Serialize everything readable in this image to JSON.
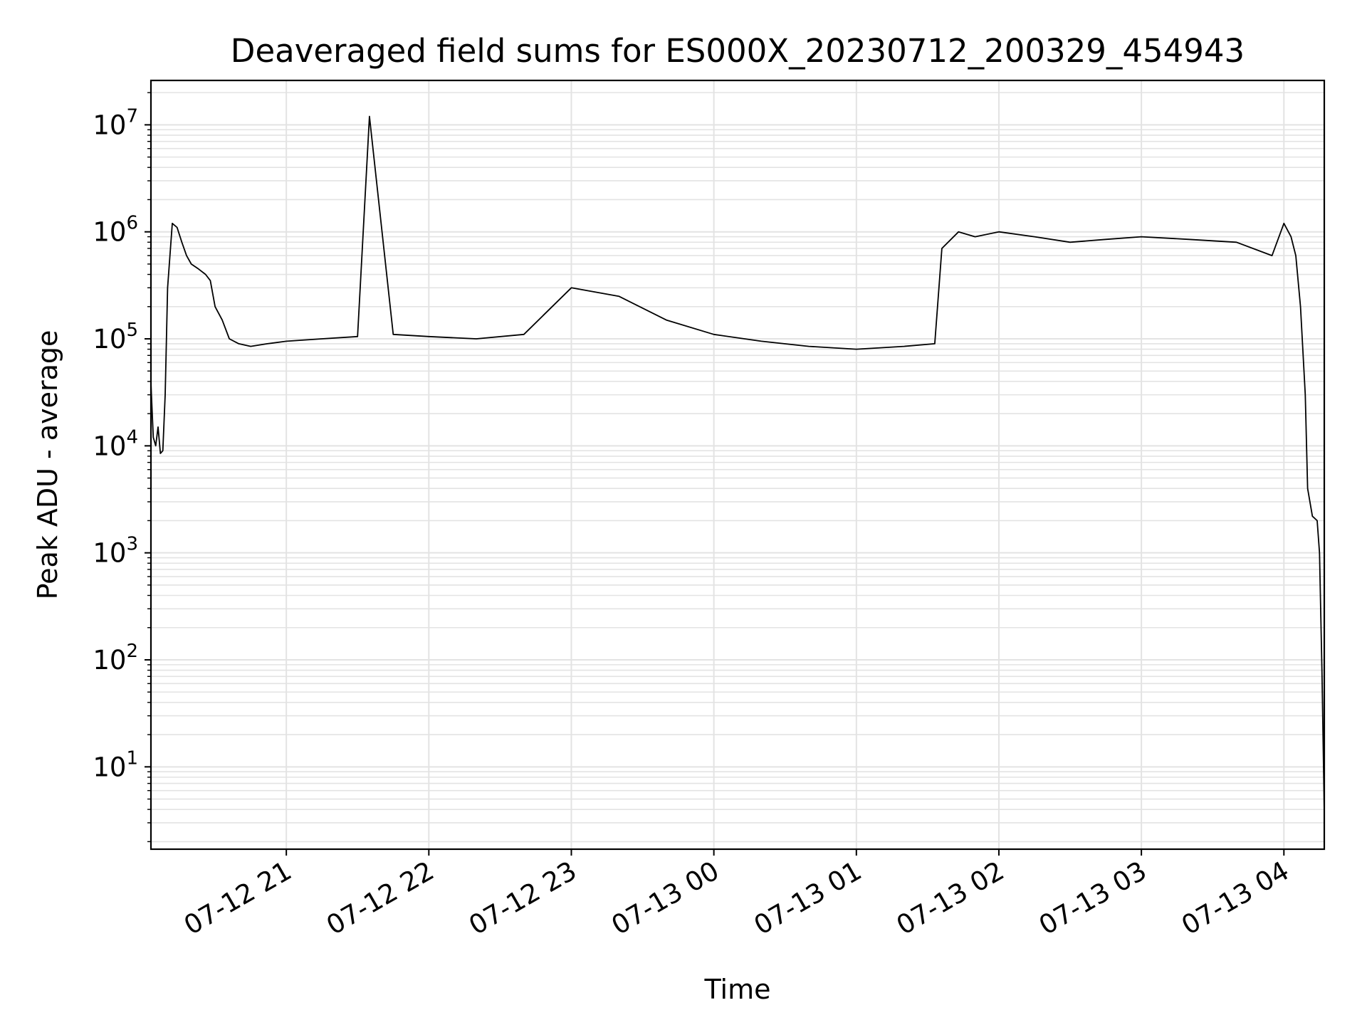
{
  "chart_data": {
    "type": "line",
    "title": "Deaveraged field sums for ES000X_20230712_200329_454943",
    "xlabel": "Time",
    "ylabel": "Peak ADU - average",
    "yscale": "log",
    "grid": true,
    "line_color": "#000000",
    "xlim": [
      "2023-07-12 20:03",
      "2023-07-13 04:17"
    ],
    "ylim": [
      1.7,
      26000000
    ],
    "x_ticks": [
      "07-12 21",
      "07-12 22",
      "07-12 23",
      "07-13 00",
      "07-13 01",
      "07-13 02",
      "07-13 03",
      "07-13 04"
    ],
    "x_tick_values": [
      "2023-07-12 21:00",
      "2023-07-12 22:00",
      "2023-07-12 23:00",
      "2023-07-13 00:00",
      "2023-07-13 01:00",
      "2023-07-13 02:00",
      "2023-07-13 03:00",
      "2023-07-13 04:00"
    ],
    "y_ticks": [
      {
        "value": 10,
        "base": "10",
        "exp": "1"
      },
      {
        "value": 100,
        "base": "10",
        "exp": "2"
      },
      {
        "value": 1000,
        "base": "10",
        "exp": "3"
      },
      {
        "value": 10000,
        "base": "10",
        "exp": "4"
      },
      {
        "value": 100000,
        "base": "10",
        "exp": "5"
      },
      {
        "value": 1000000,
        "base": "10",
        "exp": "6"
      },
      {
        "value": 10000000,
        "base": "10",
        "exp": "7"
      }
    ],
    "series": [
      {
        "x": [
          "2023-07-12 20:03",
          "2023-07-12 20:04",
          "2023-07-12 20:05",
          "2023-07-12 20:06",
          "2023-07-12 20:07",
          "2023-07-12 20:08",
          "2023-07-12 20:09",
          "2023-07-12 20:10",
          "2023-07-12 20:12",
          "2023-07-12 20:14",
          "2023-07-12 20:16",
          "2023-07-12 20:18",
          "2023-07-12 20:20",
          "2023-07-12 20:23",
          "2023-07-12 20:26",
          "2023-07-12 20:28",
          "2023-07-12 20:30",
          "2023-07-12 20:33",
          "2023-07-12 20:36",
          "2023-07-12 20:40",
          "2023-07-12 20:45",
          "2023-07-12 20:52",
          "2023-07-12 21:00",
          "2023-07-12 21:15",
          "2023-07-12 21:30",
          "2023-07-12 21:35",
          "2023-07-12 21:45",
          "2023-07-12 22:00",
          "2023-07-12 22:20",
          "2023-07-12 22:40",
          "2023-07-12 23:00",
          "2023-07-12 23:20",
          "2023-07-12 23:40",
          "2023-07-13 00:00",
          "2023-07-13 00:20",
          "2023-07-13 00:40",
          "2023-07-13 01:00",
          "2023-07-13 01:20",
          "2023-07-13 01:33",
          "2023-07-13 01:36",
          "2023-07-13 01:43",
          "2023-07-13 01:50",
          "2023-07-13 02:00",
          "2023-07-13 02:15",
          "2023-07-13 02:30",
          "2023-07-13 02:45",
          "2023-07-13 03:00",
          "2023-07-13 03:20",
          "2023-07-13 03:40",
          "2023-07-13 03:55",
          "2023-07-13 04:00",
          "2023-07-13 04:03",
          "2023-07-13 04:05",
          "2023-07-13 04:07",
          "2023-07-13 04:09",
          "2023-07-13 04:10",
          "2023-07-13 04:12",
          "2023-07-13 04:14",
          "2023-07-13 04:15",
          "2023-07-13 04:16",
          "2023-07-13 04:17"
        ],
        "y": [
          38000,
          12000,
          10000,
          15000,
          8500,
          9000,
          30000,
          300000,
          1200000,
          1100000,
          800000,
          600000,
          500000,
          450000,
          400000,
          350000,
          200000,
          150000,
          100000,
          90000,
          85000,
          90000,
          95000,
          100000,
          105000,
          12000000,
          110000,
          105000,
          100000,
          110000,
          300000,
          250000,
          150000,
          110000,
          95000,
          85000,
          80000,
          85000,
          90000,
          700000,
          1000000,
          900000,
          1000000,
          900000,
          800000,
          850000,
          900000,
          850000,
          800000,
          600000,
          1200000,
          900000,
          600000,
          200000,
          30000,
          4000,
          2200,
          2000,
          1000,
          80,
          3.8
        ]
      }
    ]
  }
}
